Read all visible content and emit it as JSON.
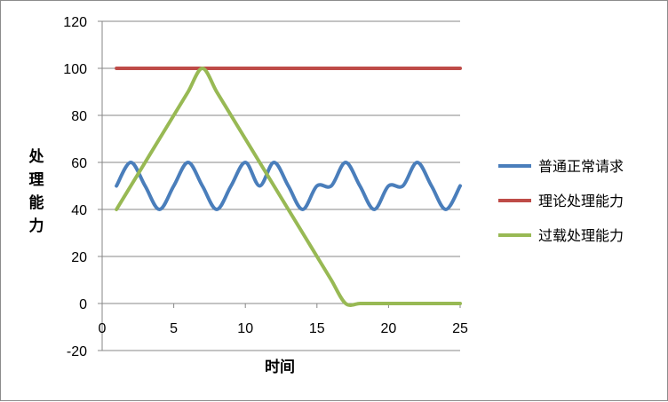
{
  "chart_data": {
    "type": "line",
    "title": "",
    "xlabel": "时间",
    "ylabel": "处理能力",
    "xlim": [
      0,
      25
    ],
    "ylim": [
      -20,
      120
    ],
    "x_ticks": [
      0,
      5,
      10,
      15,
      20,
      25
    ],
    "y_ticks": [
      -20,
      0,
      20,
      40,
      60,
      80,
      100,
      120
    ],
    "grid": true,
    "legend_position": "right",
    "series": [
      {
        "name": "普通正常请求",
        "color": "#4a7ebb",
        "x": [
          1,
          2,
          3,
          4,
          5,
          6,
          7,
          8,
          9,
          10,
          11,
          12,
          13,
          14,
          15,
          16,
          17,
          18,
          19,
          20,
          21,
          22,
          23,
          24,
          25
        ],
        "values": [
          50,
          60,
          50,
          40,
          50,
          60,
          50,
          40,
          50,
          60,
          50,
          60,
          50,
          40,
          50,
          50,
          60,
          50,
          40,
          50,
          50,
          60,
          50,
          40,
          50
        ]
      },
      {
        "name": "理论处理能力",
        "color": "#be4b48",
        "x": [
          1,
          25
        ],
        "values": [
          100,
          100
        ]
      },
      {
        "name": "过载处理能力",
        "color": "#98b954",
        "x": [
          1,
          2,
          3,
          4,
          5,
          6,
          7,
          8,
          9,
          10,
          11,
          12,
          13,
          14,
          15,
          16,
          17,
          18,
          19,
          20,
          21,
          22,
          23,
          24,
          25
        ],
        "values": [
          40,
          50,
          60,
          70,
          80,
          90,
          100,
          90,
          80,
          70,
          60,
          50,
          40,
          30,
          20,
          10,
          0,
          0,
          0,
          0,
          0,
          0,
          0,
          0,
          0
        ]
      }
    ]
  }
}
